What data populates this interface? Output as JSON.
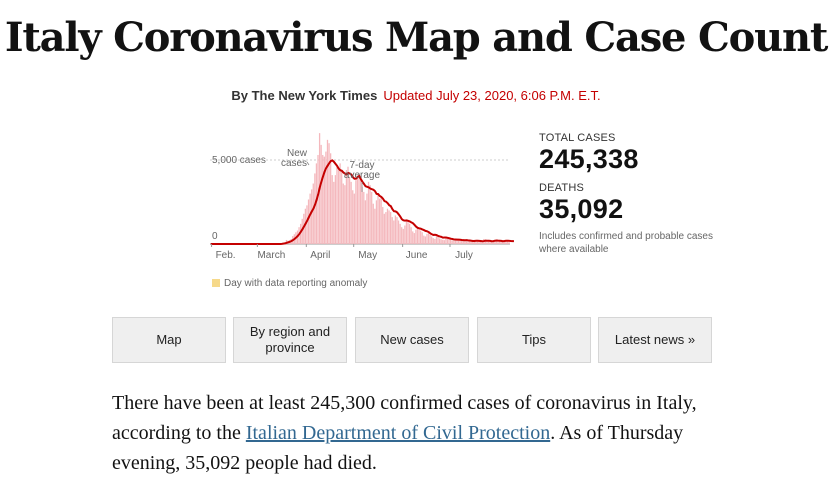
{
  "headline": "Italy Coronavirus Map and Case Count",
  "byline": "By The New York Times",
  "updated": "Updated July 23, 2020, 6:06 P.M. E.T.",
  "colors": {
    "bar": "#f4b8bd",
    "line": "#c40000",
    "anomaly": "#f6d98a",
    "updated": "#c40000",
    "link": "#326891"
  },
  "chart_data": {
    "type": "bar",
    "y_axis_labels": [
      "5,000 cases",
      "0"
    ],
    "ylim": [
      0,
      6700
    ],
    "annotations": [
      "New cases",
      "7-day average"
    ],
    "month_labels": [
      "Feb.",
      "March",
      "April",
      "May",
      "June",
      "July"
    ],
    "legend_label": "Day with data reporting anomaly",
    "series": [
      {
        "name": "New cases",
        "type": "bar",
        "values": [
          0,
          0,
          0,
          0,
          0,
          0,
          0,
          0,
          0,
          0,
          0,
          0,
          0,
          0,
          0,
          0,
          0,
          0,
          0,
          0,
          0,
          0,
          0,
          0,
          0,
          0,
          0,
          0,
          0,
          0,
          0,
          0,
          0,
          0,
          0,
          0,
          0,
          0,
          0,
          0,
          0,
          0,
          0,
          0,
          20,
          60,
          80,
          100,
          240,
          200,
          230,
          300,
          470,
          580,
          700,
          800,
          1000,
          1200,
          1500,
          1800,
          2100,
          2300,
          2650,
          3000,
          3250,
          3600,
          4200,
          4800,
          5300,
          6600,
          5900,
          5300,
          5200,
          5500,
          6200,
          6000,
          5400,
          4100,
          3700,
          4100,
          4600,
          4400,
          4800,
          4300,
          3600,
          3500,
          4400,
          4600,
          4000,
          3700,
          3200,
          3000,
          3800,
          3900,
          4200,
          3800,
          3400,
          3100,
          2600,
          3000,
          3700,
          3500,
          3100,
          2400,
          2100,
          2600,
          3000,
          2700,
          2800,
          2200,
          1800,
          1900,
          2100,
          2000,
          1900,
          1600,
          1400,
          1700,
          1600,
          1400,
          1200,
          1000,
          900,
          1100,
          1400,
          1300,
          1200,
          1000,
          750,
          650,
          850,
          1000,
          950,
          800,
          700,
          500,
          450,
          600,
          650,
          550,
          450,
          350,
          300,
          500,
          420,
          330,
          280,
          250,
          230,
          400,
          380,
          320,
          300,
          200,
          180,
          250,
          330,
          280,
          250,
          210,
          180,
          200,
          240,
          200,
          160,
          140,
          200,
          250,
          230,
          200,
          180,
          140,
          160,
          300,
          260,
          220,
          200,
          150,
          180,
          220,
          250,
          200,
          180,
          150,
          160,
          200,
          230,
          220,
          200,
          180
        ]
      },
      {
        "name": "7-day average",
        "type": "line",
        "values": [
          0,
          0,
          0,
          0,
          0,
          0,
          0,
          0,
          0,
          0,
          0,
          0,
          0,
          0,
          0,
          0,
          0,
          0,
          0,
          0,
          0,
          0,
          0,
          0,
          0,
          0,
          0,
          0,
          0,
          0,
          0,
          0,
          0,
          0,
          0,
          0,
          0,
          0,
          0,
          0,
          0,
          0,
          0,
          0,
          3,
          11,
          23,
          37,
          71,
          100,
          133,
          169,
          226,
          297,
          376,
          469,
          583,
          721,
          873,
          1036,
          1203,
          1378,
          1573,
          1765,
          1940,
          2107,
          2336,
          2621,
          2951,
          3356,
          3697,
          4000,
          4286,
          4514,
          4663,
          4810,
          4936,
          4974,
          4890,
          4770,
          4650,
          4486,
          4390,
          4357,
          4257,
          4186,
          4143,
          4229,
          4200,
          4134,
          3977,
          3886,
          3888,
          3986,
          4048,
          3871,
          3710,
          3580,
          3440,
          3404,
          3371,
          3301,
          3266,
          3227,
          3147,
          2986,
          2971,
          2857,
          2803,
          2700,
          2554,
          2519,
          2429,
          2311,
          2254,
          2080,
          1952,
          1942,
          1881,
          1766,
          1637,
          1476,
          1410,
          1392,
          1403,
          1378,
          1343,
          1290,
          1241,
          1143,
          1037,
          964,
          935,
          910,
          866,
          829,
          779,
          757,
          710,
          637,
          578,
          540,
          550,
          532,
          479,
          449,
          424,
          381,
          384,
          386,
          368,
          342,
          315,
          298,
          271,
          266,
          263,
          260,
          255,
          241,
          233,
          226,
          234,
          217,
          208,
          192,
          176,
          179,
          193,
          194,
          187,
          177,
          164,
          175,
          200,
          195,
          190,
          184,
          167,
          171,
          196,
          205,
          198,
          196,
          186,
          166,
          177,
          193,
          197,
          190,
          176,
          169,
          170
        ]
      }
    ]
  },
  "stats": {
    "total_cases_label": "TOTAL CASES",
    "total_cases_value": "245,338",
    "deaths_label": "DEATHS",
    "deaths_value": "35,092",
    "note": "Includes confirmed and probable cases where available"
  },
  "tabs": [
    {
      "label": "Map"
    },
    {
      "label": "By region and province"
    },
    {
      "label": "New cases"
    },
    {
      "label": "Tips"
    },
    {
      "label": "Latest news »"
    }
  ],
  "body": {
    "text1": "There have been at least 245,300 confirmed cases of coronavirus in Italy, according to the ",
    "link_text": "Italian Department of Civil Protection",
    "text2": ". As of Thursday evening, 35,092 people had died."
  }
}
